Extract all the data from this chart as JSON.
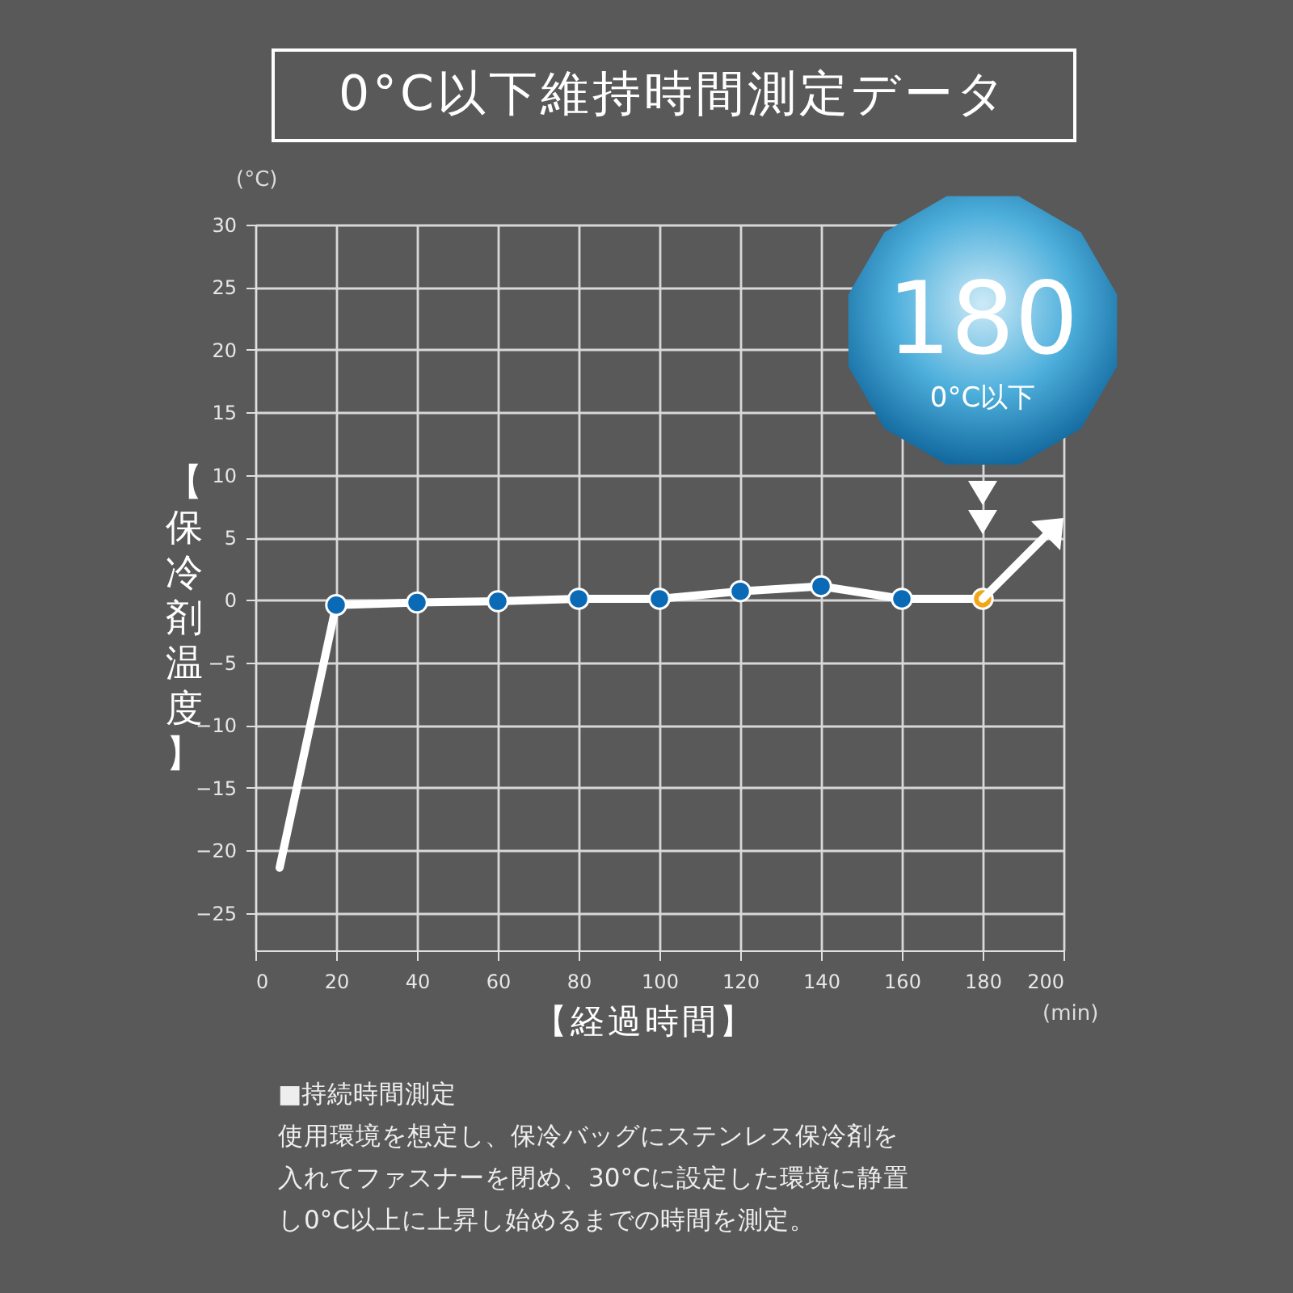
{
  "chart_data": {
    "type": "line",
    "title": "0°C以下維持時間測定データ",
    "xlabel": "【経過時間】",
    "ylabel": "【保冷剤温度】",
    "x": [
      6,
      20,
      40,
      60,
      80,
      100,
      120,
      140,
      160,
      180
    ],
    "series": [
      {
        "color": "#ffffff",
        "values": [
          -21.4,
          -0.4,
          -0.2,
          -0.1,
          0.1,
          0.1,
          0.7,
          1.1,
          0.1,
          0.1
        ],
        "colors": [
          null,
          "#0a6ab5",
          "#0a6ab5",
          "#0a6ab5",
          "#0a6ab5",
          "#0a6ab5",
          "#0a6ab5",
          "#0a6ab5",
          "#0a6ab5",
          "#f0a818"
        ]
      }
    ],
    "xlim": [
      0,
      200
    ],
    "xticks": [
      0,
      20,
      40,
      60,
      80,
      100,
      120,
      140,
      160,
      180,
      200
    ],
    "ylim": [
      -28,
      30
    ],
    "yticks": [
      -25,
      -20,
      -15,
      -10,
      -5,
      0,
      5,
      10,
      15,
      20,
      25,
      30
    ],
    "grid": true,
    "marker": "circle",
    "line_style": "solid",
    "annotations": [
      "(°C)",
      "(min)",
      "180",
      "0°C以下",
      "■持続時間測定",
      "使用環境を想定し、保冷バッグにステンレス保冷剤を",
      "入れてファスナーを閉め、30°Cに設定した環境に静置",
      "し0°C以上に上昇し始めるまでの時間を測定。"
    ]
  }
}
